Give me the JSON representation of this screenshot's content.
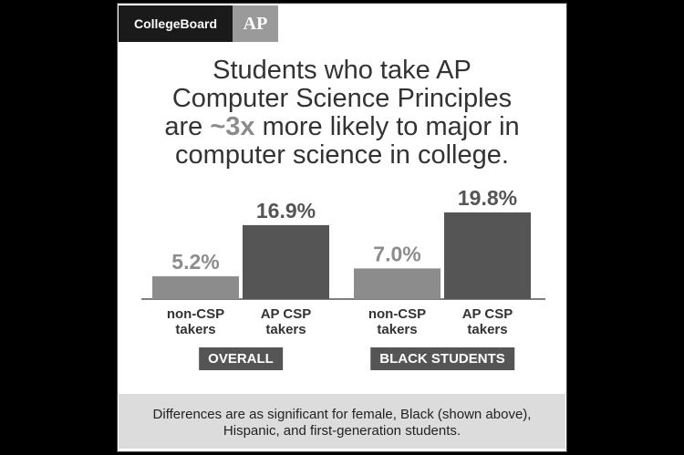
{
  "header": {
    "logo": "CollegeBoard",
    "badge": "AP"
  },
  "chart_data": {
    "type": "bar",
    "title": [
      "Students who take AP",
      "Computer Science Principles",
      "are",
      "~3x",
      "more likely to major in",
      "computer science in college."
    ],
    "groups": [
      "OVERALL",
      "BLACK STUDENTS"
    ],
    "series": [
      {
        "name": "non-CSP takers",
        "color": "#8c8c8c",
        "values": [
          5.2,
          7
        ],
        "value_labels": [
          "5.2%",
          "7.0%"
        ]
      },
      {
        "name": "AP CSP takers",
        "color": "#555555",
        "values": [
          16.9,
          19.8
        ],
        "value_labels": [
          "16.9%",
          "19.8%"
        ]
      }
    ],
    "ylim": [
      0,
      20
    ]
  },
  "footnote": "Differences are as significant for female, Black (shown above), Hispanic, and first-generation students."
}
